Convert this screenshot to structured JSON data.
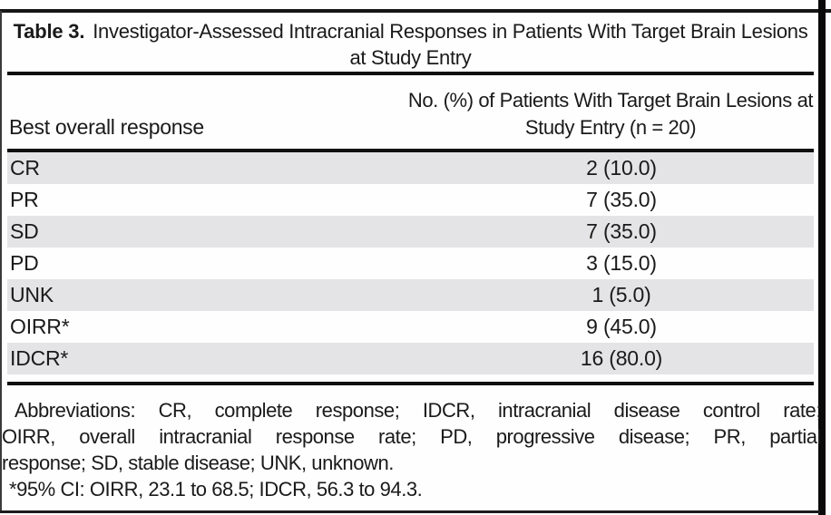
{
  "table": {
    "label": "Table 3.",
    "title": "Investigator-Assessed Intracranial Responses in Patients With Target Brain Lesions at Study Entry",
    "columns": {
      "response": "Best overall response",
      "patients": "No. (%) of Patients With Target Brain Lesions at Study Entry (n = 20)"
    },
    "rows": [
      {
        "label": "CR",
        "value": "2 (10.0)"
      },
      {
        "label": "PR",
        "value": "7 (35.0)"
      },
      {
        "label": "SD",
        "value": "7 (35.0)"
      },
      {
        "label": "PD",
        "value": "3 (15.0)"
      },
      {
        "label": "UNK",
        "value": "1 (5.0)"
      },
      {
        "label": "OIRR*",
        "value": "9 (45.0)"
      },
      {
        "label": "IDCR*",
        "value": "16 (80.0)"
      }
    ]
  },
  "footnotes": {
    "abbreviations_lines": [
      "Abbreviations: CR, complete response; IDCR, intracranial disease control rate;",
      "OIRR, overall intracranial response rate; PD, progressive disease; PR, partial",
      "response; SD, stable disease; UNK, unknown."
    ],
    "ci_note": "*95% CI: OIRR, 23.1 to 68.5; IDCR, 56.3 to 94.3."
  },
  "colors": {
    "row_shade": "#e4e4e6",
    "rule": "#101010",
    "text": "#1a1a1a"
  }
}
